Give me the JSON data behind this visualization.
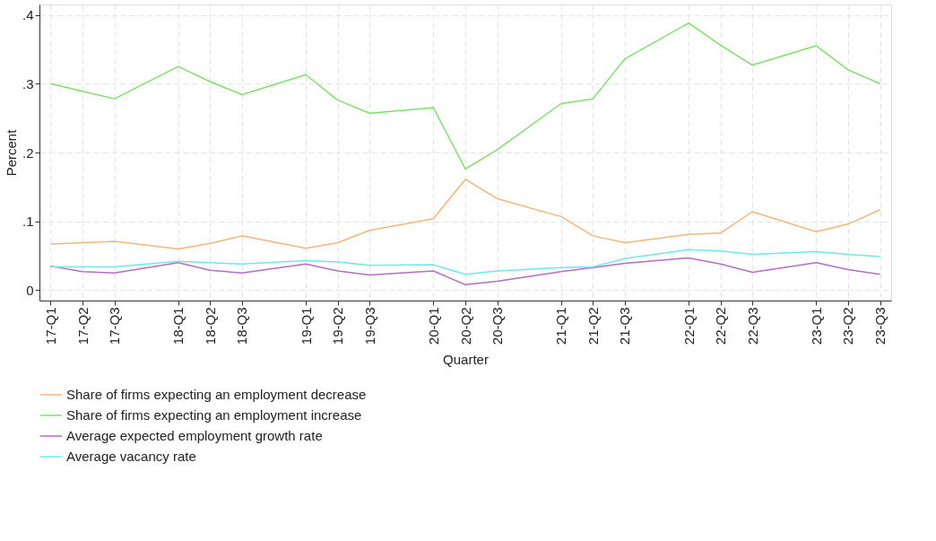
{
  "chart_data": {
    "type": "line",
    "xlabel": "Quarter",
    "ylabel": "Percent",
    "categories": [
      "17-Q1",
      "17-Q2",
      "17-Q3",
      null,
      "18-Q1",
      "18-Q2",
      "18-Q3",
      null,
      "19-Q1",
      "19-Q2",
      "19-Q3",
      null,
      "20-Q1",
      "20-Q2",
      "20-Q3",
      null,
      "21-Q1",
      "21-Q2",
      "21-Q3",
      null,
      "22-Q1",
      "22-Q2",
      "22-Q3",
      null,
      "23-Q1",
      "23-Q2",
      "23-Q3"
    ],
    "ylim": [
      -0.015,
      0.415
    ],
    "yticks": [
      0,
      {
        "value": 0.1,
        "label": ".1"
      },
      {
        "value": 0.2,
        "label": ".2"
      },
      {
        "value": 0.3,
        "label": ".3"
      },
      {
        "value": 0.4,
        "label": ".4"
      }
    ],
    "grid": true,
    "legend": "bottom",
    "marker": "none",
    "line_style": "solid",
    "series": [
      {
        "name": "Share of firms expecting an employment decrease",
        "color": "#f4b67a",
        "values": [
          0.067,
          0.069,
          0.071,
          null,
          0.06,
          0.068,
          0.079,
          null,
          0.061,
          0.069,
          0.087,
          null,
          0.104,
          0.161,
          0.133,
          null,
          0.107,
          0.079,
          0.069,
          null,
          0.081,
          0.083,
          0.114,
          null,
          0.085,
          0.096,
          0.117
        ]
      },
      {
        "name": "Share of firms expecting an employment increase",
        "color": "#7ee06a",
        "values": [
          0.3,
          0.289,
          0.278,
          null,
          0.325,
          0.303,
          0.284,
          null,
          0.313,
          0.276,
          0.257,
          null,
          0.265,
          0.176,
          0.204,
          null,
          0.271,
          0.278,
          0.336,
          null,
          0.388,
          0.356,
          0.327,
          null,
          0.355,
          0.32,
          0.3
        ]
      },
      {
        "name": "Average expected employment growth rate",
        "color": "#b46ec4",
        "values": [
          0.035,
          0.027,
          0.025,
          null,
          0.04,
          0.029,
          0.025,
          null,
          0.038,
          0.028,
          0.022,
          null,
          0.028,
          0.008,
          0.013,
          null,
          0.027,
          0.033,
          0.039,
          null,
          0.047,
          0.038,
          0.026,
          null,
          0.04,
          0.03,
          0.023
        ]
      },
      {
        "name": "Average vacancy rate",
        "color": "#6ee8ec",
        "values": [
          0.034,
          0.034,
          0.034,
          null,
          0.042,
          0.04,
          0.038,
          null,
          0.043,
          0.041,
          0.036,
          null,
          0.037,
          0.023,
          0.028,
          null,
          0.033,
          0.034,
          0.046,
          null,
          0.059,
          0.057,
          0.052,
          null,
          0.056,
          0.052,
          0.049
        ]
      }
    ]
  }
}
